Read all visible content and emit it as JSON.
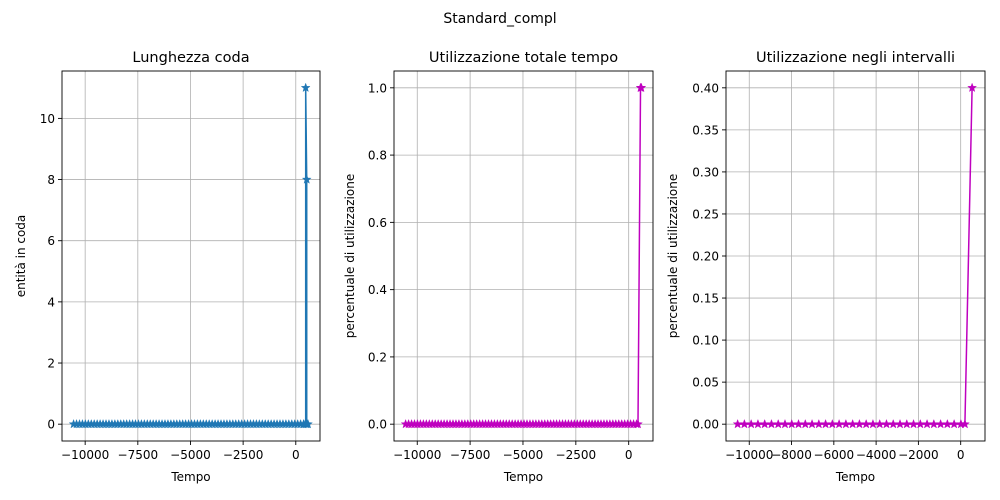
{
  "figure_title": "Standard_compl",
  "chart_data": [
    {
      "type": "line",
      "title": "Lunghezza coda",
      "xlabel": "Tempo",
      "ylabel": "entità in coda",
      "color": "#1f77b4",
      "marker": "star",
      "grid": true,
      "xlim": [
        -11100,
        1150
      ],
      "ylim": [
        -0.55,
        11.55
      ],
      "xticks": [
        -10000,
        -7500,
        -5000,
        -2500,
        0
      ],
      "xtick_labels": [
        "−10000",
        "−7500",
        "−5000",
        "−2500",
        "0"
      ],
      "yticks": [
        0,
        2,
        4,
        6,
        8,
        10
      ],
      "ytick_labels": [
        "0",
        "2",
        "4",
        "6",
        "8",
        "10"
      ],
      "series": [
        {
          "x_dense": {
            "start": -10550,
            "end": 380,
            "step": 140
          },
          "points": [
            [
              380,
              0
            ],
            [
              470,
              0
            ],
            [
              470,
              11
            ],
            [
              520,
              8
            ],
            [
              520,
              0
            ],
            [
              580,
              0
            ]
          ]
        }
      ]
    },
    {
      "type": "line",
      "title": "Utilizzazione totale tempo",
      "xlabel": "Tempo",
      "ylabel": "percentuale di utilizzazione",
      "color": "#bf00bf",
      "marker": "star",
      "grid": true,
      "xlim": [
        -11100,
        1150
      ],
      "ylim": [
        -0.05,
        1.05
      ],
      "xticks": [
        -10000,
        -7500,
        -5000,
        -2500,
        0
      ],
      "xtick_labels": [
        "−10000",
        "−7500",
        "−5000",
        "−2500",
        "0"
      ],
      "yticks": [
        0.0,
        0.2,
        0.4,
        0.6,
        0.8,
        1.0
      ],
      "ytick_labels": [
        "0.0",
        "0.2",
        "0.4",
        "0.6",
        "0.8",
        "1.0"
      ],
      "series": [
        {
          "x_dense": {
            "start": -10550,
            "end": 440,
            "step": 140
          },
          "points": [
            [
              440,
              0
            ],
            [
              560,
              1.0
            ],
            [
              600,
              1.0
            ]
          ]
        }
      ]
    },
    {
      "type": "line",
      "title": "Utilizzazione negli intervalli",
      "xlabel": "Tempo",
      "ylabel": "percentuale di utilizzazione",
      "color": "#bf00bf",
      "marker": "star",
      "grid": true,
      "xlim": [
        -11100,
        1150
      ],
      "ylim": [
        -0.02,
        0.42
      ],
      "xticks": [
        -10000,
        -8000,
        -6000,
        -4000,
        -2000,
        0
      ],
      "xtick_labels": [
        "−10000",
        "−8000",
        "−6000",
        "−4000",
        "−2000",
        "0"
      ],
      "yticks": [
        0.0,
        0.05,
        0.1,
        0.15,
        0.2,
        0.25,
        0.3,
        0.35,
        0.4
      ],
      "ytick_labels": [
        "0.00",
        "0.05",
        "0.10",
        "0.15",
        "0.20",
        "0.25",
        "0.30",
        "0.35",
        "0.40"
      ],
      "series": [
        {
          "x_dense": {
            "start": -10550,
            "end": 200,
            "step": 320
          },
          "points": [
            [
              200,
              0
            ],
            [
              540,
              0.4
            ]
          ]
        }
      ]
    }
  ]
}
